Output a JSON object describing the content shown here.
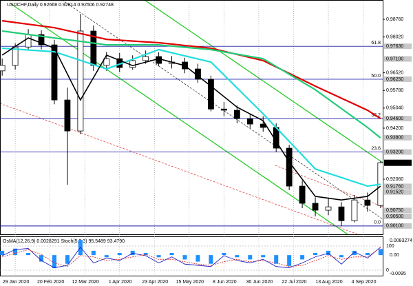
{
  "chart_data": [
    {
      "type": "candlestick",
      "title": "USDCHF,Daily  0.92668 0.92814 0.92506 0.92748",
      "xlim": [
        -7,
        169
      ],
      "ylim": [
        0.8975,
        0.9957
      ],
      "grid": true,
      "xticks": [
        {
          "value": 0,
          "label": "29 Jan 2020"
        },
        {
          "value": 16,
          "label": "20 Feb 2020"
        },
        {
          "value": 32,
          "label": "12 Mar 2020"
        },
        {
          "value": 48,
          "label": "1 Apr 2020"
        },
        {
          "value": 64,
          "label": "23 Apr 2020"
        },
        {
          "value": 80,
          "label": "15 May 2020"
        },
        {
          "value": 96,
          "label": "8 Jun 2020"
        },
        {
          "value": 112,
          "label": "30 Jun 2020"
        },
        {
          "value": 128,
          "label": "22 Jul 2020"
        },
        {
          "value": 144,
          "label": "13 Aug 2020"
        },
        {
          "value": 160,
          "label": "4 Sep 2020"
        }
      ],
      "yticks": [
        {
          "value": 0.9876,
          "label": "0.98760"
        },
        {
          "value": 0.9802,
          "label": "0.98020"
        },
        {
          "value": 0.9652,
          "label": "0.96520"
        },
        {
          "value": 0.9578,
          "label": "0.95780"
        },
        {
          "value": 0.9504,
          "label": "0.95040"
        },
        {
          "value": 0.942,
          "label": "0.94200"
        },
        {
          "value": 0.9206,
          "label": "0.92060"
        }
      ],
      "levels": [
        {
          "value": 0.9763,
          "label": "0.97630"
        },
        {
          "value": 0.971,
          "label": "0.97100"
        },
        {
          "value": 0.9625,
          "label": "0.96250"
        },
        {
          "value": 0.946,
          "label": "0.94600"
        },
        {
          "value": 0.938,
          "label": "0.93800"
        },
        {
          "value": 0.932,
          "label": "0.93200"
        },
        {
          "value": 0.9176,
          "label": "0.91760"
        },
        {
          "value": 0.9152,
          "label": "0.91520"
        },
        {
          "value": 0.9075,
          "label": "0.90750"
        },
        {
          "value": 0.905,
          "label": "0.90500"
        },
        {
          "value": 0.901,
          "label": "0.90100"
        }
      ],
      "last": {
        "value": 0.92748,
        "label": "0.92748"
      },
      "fib_levels": [
        {
          "label": "61.8",
          "value": 0.9763
        },
        {
          "label": "50.0",
          "value": 0.9625
        },
        {
          "label": "38.2",
          "value": 0.946
        },
        {
          "label": "23.6",
          "value": 0.932
        },
        {
          "label": "0.0",
          "value": 0.901
        }
      ],
      "fib_color": "#1a1aa8",
      "x": [
        -6,
        0,
        6,
        12,
        18,
        24,
        30,
        36,
        42,
        48,
        54,
        60,
        66,
        72,
        78,
        84,
        90,
        96,
        102,
        108,
        114,
        120,
        126,
        132,
        138,
        144,
        150,
        156,
        162,
        168
      ],
      "open": [
        0.966,
        0.9683,
        0.976,
        0.9812,
        0.9769,
        0.9538,
        0.9408,
        0.9827,
        0.9683,
        0.9711,
        0.9674,
        0.9703,
        0.972,
        0.9691,
        0.9697,
        0.9668,
        0.9625,
        0.95,
        0.9495,
        0.946,
        0.9437,
        0.9423,
        0.9336,
        0.9177,
        0.9105,
        0.9076,
        0.909,
        0.9032,
        0.9119,
        0.9096
      ],
      "high": [
        0.9712,
        0.9775,
        0.9835,
        0.983,
        0.979,
        0.959,
        0.9899,
        0.985,
        0.974,
        0.9735,
        0.9725,
        0.9745,
        0.9738,
        0.9722,
        0.9715,
        0.969,
        0.964,
        0.953,
        0.9515,
        0.948,
        0.947,
        0.944,
        0.935,
        0.92,
        0.913,
        0.9125,
        0.911,
        0.914,
        0.915,
        0.9282
      ],
      "low": [
        0.964,
        0.9665,
        0.9745,
        0.975,
        0.952,
        0.9183,
        0.9395,
        0.966,
        0.966,
        0.9655,
        0.9665,
        0.969,
        0.968,
        0.967,
        0.965,
        0.961,
        0.949,
        0.947,
        0.944,
        0.942,
        0.9405,
        0.932,
        0.916,
        0.9085,
        0.905,
        0.9055,
        0.901,
        0.9025,
        0.907,
        0.9085
      ],
      "close": [
        0.9683,
        0.976,
        0.9812,
        0.9769,
        0.9538,
        0.9408,
        0.9827,
        0.9683,
        0.9711,
        0.9674,
        0.9703,
        0.972,
        0.9691,
        0.9697,
        0.9668,
        0.9625,
        0.95,
        0.9495,
        0.946,
        0.9437,
        0.9423,
        0.9336,
        0.9177,
        0.9105,
        0.9076,
        0.909,
        0.9032,
        0.9119,
        0.9096,
        0.9275
      ],
      "series": [
        {
          "color": "#e00000",
          "x": [
            -6,
            18,
            42,
            66,
            90,
            114,
            138,
            162,
            168
          ],
          "values": [
            0.987,
            0.9841,
            0.9792,
            0.9778,
            0.9755,
            0.9703,
            0.9596,
            0.9495,
            0.946
          ]
        },
        {
          "color": "#22cc77",
          "x": [
            -6,
            18,
            42,
            66,
            90,
            114,
            138,
            162,
            168
          ],
          "values": [
            0.9827,
            0.9798,
            0.9769,
            0.9769,
            0.9749,
            0.9711,
            0.9581,
            0.9423,
            0.9379
          ]
        },
        {
          "color": "#22dddd",
          "x": [
            -6,
            18,
            42,
            66,
            90,
            114,
            138,
            162,
            168
          ],
          "values": [
            0.9755,
            0.974,
            0.9668,
            0.9749,
            0.9697,
            0.948,
            0.9249,
            0.9177,
            0.9185
          ]
        },
        {
          "color": "#000000",
          "x": [
            -6,
            6,
            18,
            30,
            42,
            54,
            66,
            78,
            90,
            102,
            114,
            126,
            138,
            150,
            162,
            168
          ],
          "values": [
            0.9726,
            0.9798,
            0.9755,
            0.9538,
            0.9726,
            0.9682,
            0.9711,
            0.9682,
            0.9596,
            0.9508,
            0.9451,
            0.9278,
            0.9134,
            0.9119,
            0.9134,
            0.9177
          ]
        }
      ]
    },
    {
      "type": "indicator",
      "title": "OsMA(12,26,9) 0.0028291 Stoch(5,3,3) 95.5489 93.4790",
      "ylim": [
        -0.0095,
        0.0083274
      ],
      "yticks": [
        {
          "value": 0.0083274,
          "label": "0.0083274"
        },
        {
          "value": 0,
          "label": "0.00"
        },
        {
          "value": -0.0095,
          "label": "-0.0095"
        }
      ],
      "y2lim": [
        0,
        100
      ],
      "y2ticks": [
        100,
        0
      ],
      "x": [
        -6,
        0,
        6,
        12,
        18,
        24,
        30,
        36,
        42,
        48,
        54,
        60,
        66,
        72,
        78,
        84,
        90,
        96,
        102,
        108,
        114,
        120,
        126,
        132,
        138,
        144,
        150,
        156,
        162,
        168
      ],
      "series": [
        {
          "type": "bar",
          "color": "#1e90ff",
          "values": [
            0.002,
            0.003,
            0.001,
            -0.003,
            -0.006,
            -0.004,
            0.007,
            0.002,
            -0.001,
            0.001,
            0.002,
            0.001,
            -0.001,
            0.001,
            -0.002,
            -0.003,
            -0.004,
            0.001,
            -0.001,
            -0.002,
            -0.001,
            -0.004,
            -0.005,
            -0.002,
            0.001,
            0.002,
            -0.001,
            0.002,
            0.001,
            0.0028
          ]
        },
        {
          "type": "line",
          "axis": "y2",
          "color": "#2020c0",
          "values": [
            60,
            85,
            90,
            40,
            10,
            20,
            95,
            30,
            50,
            40,
            70,
            60,
            30,
            55,
            25,
            20,
            15,
            60,
            40,
            30,
            45,
            15,
            10,
            30,
            55,
            70,
            25,
            75,
            50,
            95.5
          ]
        },
        {
          "type": "line",
          "axis": "y2",
          "color": "#e03030",
          "dashed": true,
          "values": [
            55,
            70,
            85,
            65,
            30,
            15,
            60,
            55,
            40,
            45,
            55,
            65,
            45,
            45,
            35,
            25,
            20,
            35,
            45,
            35,
            40,
            30,
            15,
            20,
            40,
            60,
            45,
            55,
            55,
            93.5
          ]
        }
      ]
    }
  ]
}
